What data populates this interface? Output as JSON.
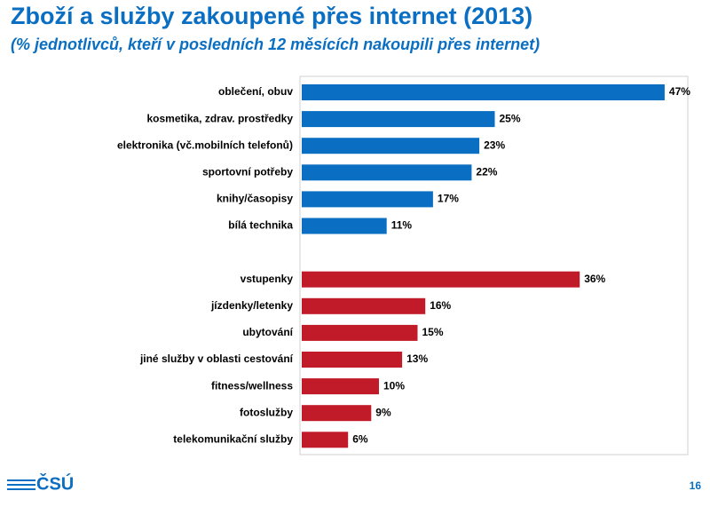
{
  "chart_data": {
    "type": "hbar",
    "title": "Zboží a služby zakoupené přes internet (2013)",
    "subtitle": "(% jednotlivců, kteří v posledních 12 měsících nakoupili přes internet)",
    "categories": [
      "oblečení, obuv",
      "kosmetika, zdrav. prostředky",
      "elektronika (vč.mobilních telefonů)",
      "sportovní potřeby",
      "knihy/časopisy",
      "bílá technika",
      null,
      "vstupenky",
      "jízdenky/letenky",
      "ubytování",
      "jiné služby v oblasti cestování",
      "fitness/wellness",
      "fotoslužby",
      "telekomunikační služby"
    ],
    "values": [
      47,
      25,
      23,
      22,
      17,
      11,
      null,
      36,
      16,
      15,
      13,
      10,
      9,
      6
    ],
    "value_labels": [
      "47%",
      "25%",
      "23%",
      "22%",
      "17%",
      "11%",
      null,
      "36%",
      "16%",
      "15%",
      "13%",
      "10%",
      "9%",
      "6%"
    ],
    "colors": [
      "#0a6fc2",
      "#0a6fc2",
      "#0a6fc2",
      "#0a6fc2",
      "#0a6fc2",
      "#0a6fc2",
      null,
      "#c11b2a",
      "#c11b2a",
      "#c11b2a",
      "#c11b2a",
      "#c11b2a",
      "#c11b2a",
      "#c11b2a"
    ],
    "xlim": [
      0,
      50
    ]
  },
  "footer": {
    "logo": "ČSÚ",
    "page_number": "16"
  }
}
